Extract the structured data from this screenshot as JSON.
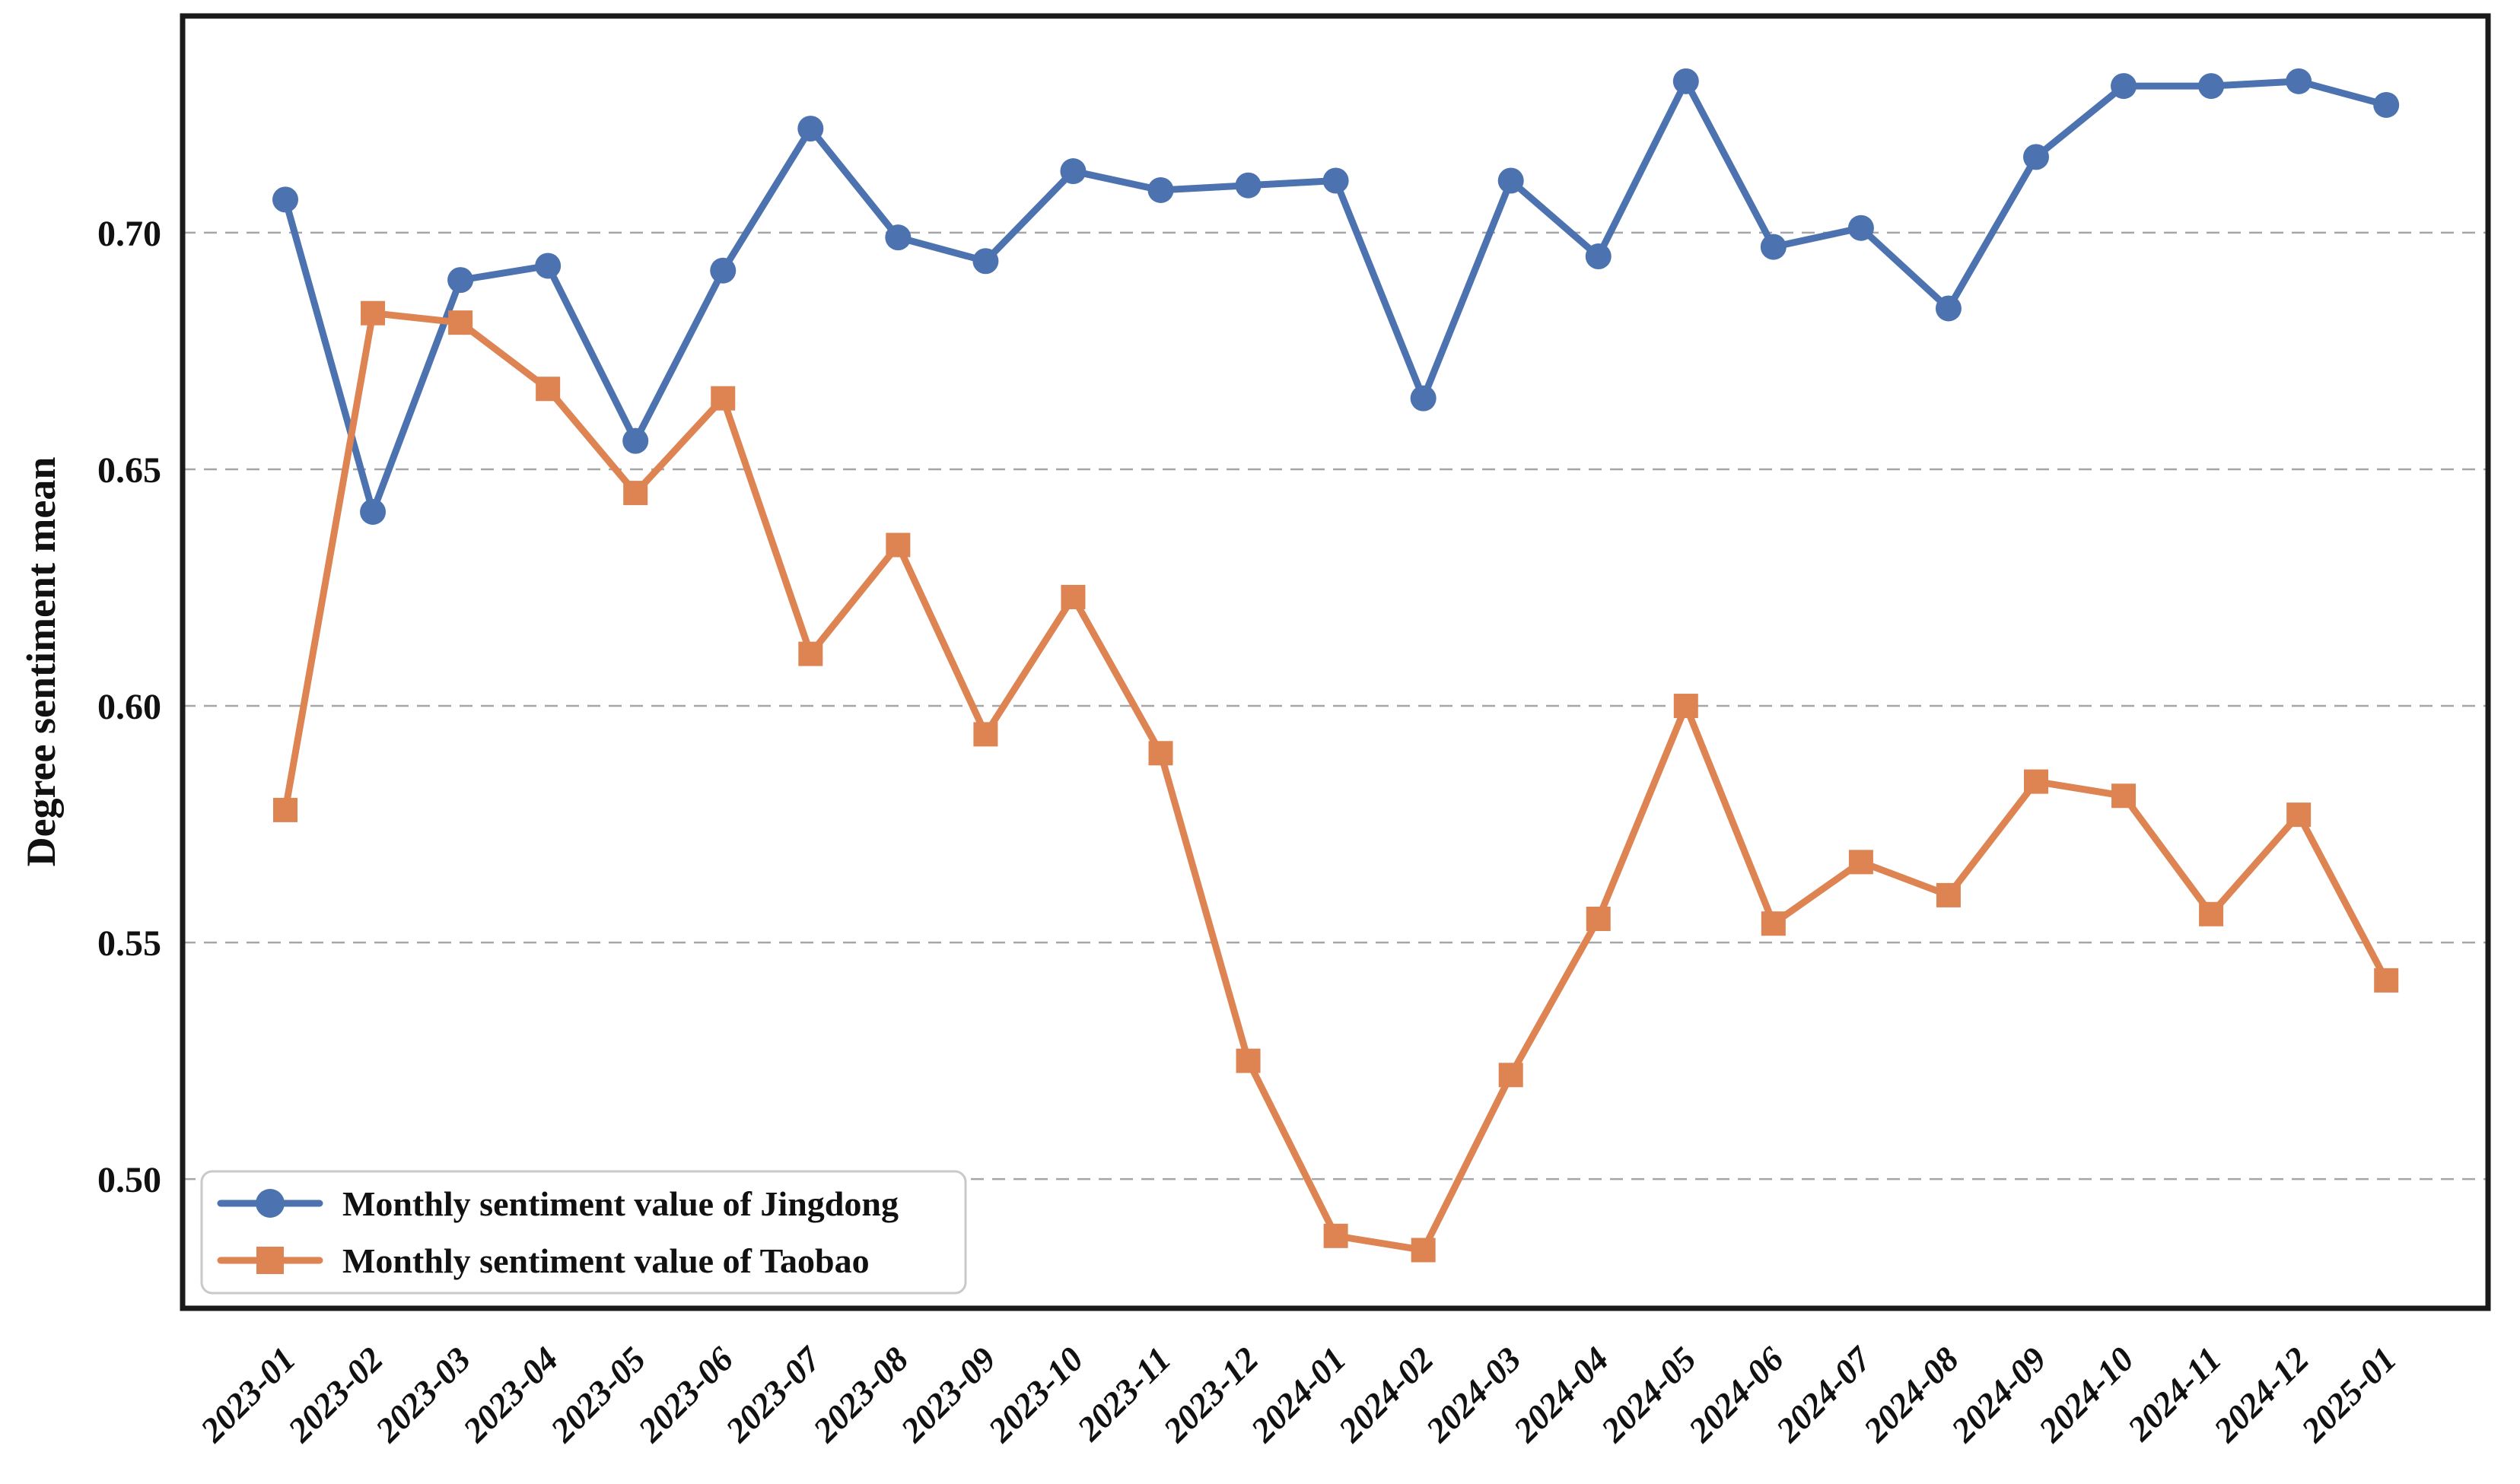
{
  "page": {
    "background": "#ffffff"
  },
  "chart_data": {
    "type": "line",
    "title": "",
    "xlabel": "",
    "ylabel": "Degree sentiment mean",
    "categories": [
      "2023-01",
      "2023-02",
      "2023-03",
      "2023-04",
      "2023-05",
      "2023-06",
      "2023-07",
      "2023-08",
      "2023-09",
      "2023-10",
      "2023-11",
      "2023-12",
      "2024-01",
      "2024-02",
      "2024-03",
      "2024-04",
      "2024-05",
      "2024-06",
      "2024-07",
      "2024-08",
      "2024-09",
      "2024-10",
      "2024-11",
      "2024-12",
      "2025-01"
    ],
    "series": [
      {
        "name": "Monthly sentiment value of Jingdong",
        "marker": "circle",
        "color": "#4c72b0",
        "values": [
          0.707,
          0.641,
          0.69,
          0.693,
          0.656,
          0.692,
          0.722,
          0.699,
          0.694,
          0.713,
          0.709,
          0.71,
          0.711,
          0.665,
          0.711,
          0.695,
          0.732,
          0.697,
          0.701,
          0.684,
          0.716,
          0.731,
          0.731,
          0.732,
          0.727
        ]
      },
      {
        "name": "Monthly sentiment value of Taobao",
        "marker": "square",
        "color": "#dd8452",
        "values": [
          0.578,
          0.683,
          0.681,
          0.667,
          0.645,
          0.665,
          0.611,
          0.634,
          0.594,
          0.623,
          0.59,
          0.525,
          0.488,
          0.485,
          0.522,
          0.555,
          0.6,
          0.554,
          0.567,
          0.56,
          0.584,
          0.581,
          0.556,
          0.577,
          0.542
        ]
      }
    ],
    "ylim": [
      0.473,
      0.746
    ],
    "ytick_labels": [
      "0.50",
      "0.55",
      "0.60",
      "0.65",
      "0.70"
    ],
    "grid": {
      "axis": "y",
      "style": "dashed",
      "color": "#a6a6a6"
    },
    "legend_position": "lower-left",
    "legend_background": "#ffffff",
    "legend_border_color": "#c9c9c9",
    "spine_color": "#1a1a1a",
    "text_color": "#111111",
    "x_tick_rotation": 45
  }
}
